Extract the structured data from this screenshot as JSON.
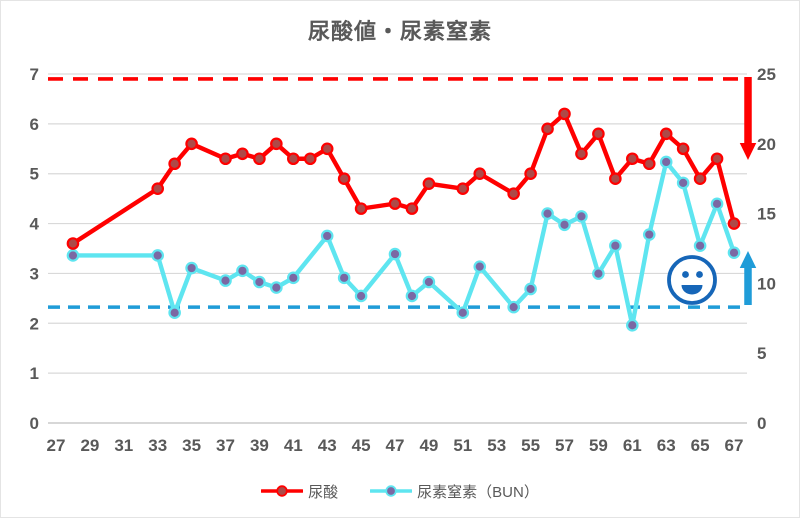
{
  "title": "尿酸値・尿素窒素",
  "chart_data": {
    "type": "line",
    "title": "尿酸値・尿素窒素",
    "grid": "horizontal",
    "legend_position": "bottom",
    "x_axis": {
      "label": "",
      "ticks": [
        27,
        29,
        31,
        33,
        35,
        37,
        39,
        41,
        43,
        45,
        47,
        49,
        51,
        53,
        55,
        57,
        59,
        61,
        63,
        65,
        67
      ]
    },
    "y_axis_left": {
      "label": "",
      "ticks": [
        0,
        1,
        2,
        3,
        4,
        5,
        6,
        7
      ],
      "range": [
        0,
        7
      ]
    },
    "y_axis_right": {
      "label": "",
      "ticks": [
        0,
        5,
        10,
        15,
        20,
        25
      ],
      "range": [
        0,
        25
      ]
    },
    "series": [
      {
        "name": "尿酸",
        "axis": "left",
        "line_color": "#ff0000",
        "marker_color": "#ad4a48",
        "x": [
          28,
          33,
          34,
          35,
          37,
          38,
          39,
          40,
          41,
          42,
          43,
          44,
          45,
          47,
          48,
          49,
          51,
          52,
          54,
          55,
          56,
          57,
          58,
          59,
          60,
          61,
          62,
          63,
          64,
          65,
          66,
          67
        ],
        "values": [
          3.6,
          4.7,
          5.2,
          5.6,
          5.3,
          5.4,
          5.3,
          5.6,
          5.3,
          5.3,
          5.5,
          4.9,
          4.3,
          4.4,
          4.3,
          4.8,
          4.7,
          5.0,
          4.6,
          5.0,
          5.9,
          6.2,
          5.4,
          5.8,
          4.9,
          5.3,
          5.2,
          5.8,
          5.5,
          4.9,
          5.3,
          4.0
        ]
      },
      {
        "name": "尿素窒素（BUN）",
        "axis": "right",
        "line_color": "#5ee5f0",
        "marker_color": "#7b68a3",
        "x": [
          28,
          33,
          34,
          35,
          37,
          38,
          39,
          40,
          41,
          43,
          44,
          45,
          47,
          48,
          49,
          51,
          52,
          54,
          55,
          56,
          57,
          58,
          59,
          60,
          61,
          62,
          63,
          64,
          65,
          66,
          67
        ],
        "values": [
          12.0,
          12.0,
          7.9,
          11.1,
          10.2,
          10.9,
          10.1,
          9.7,
          10.4,
          13.4,
          10.4,
          9.1,
          12.1,
          9.1,
          10.1,
          7.9,
          11.2,
          8.3,
          9.6,
          15.0,
          14.2,
          14.8,
          10.7,
          12.7,
          7.0,
          13.5,
          18.7,
          17.2,
          12.7,
          15.7,
          12.2
        ]
      }
    ],
    "reference_lines": [
      {
        "name": "uric-acid-upper-limit",
        "axis": "left",
        "value": 6.9,
        "color": "#ff0000",
        "style": "dashed"
      },
      {
        "name": "bun-lower-limit",
        "axis": "right",
        "value": 8.3,
        "color": "#1f9cd8",
        "style": "dashed"
      }
    ],
    "annotations": {
      "arrows": [
        {
          "name": "uric-acid-trend-arrow",
          "direction": "down",
          "color": "#ff0000"
        },
        {
          "name": "bun-trend-arrow",
          "direction": "up",
          "color": "#1f9cd8"
        }
      ],
      "smiley": {
        "name": "smiley-face-icon",
        "color": "#1666b8"
      }
    },
    "colors": {
      "text": "#595959",
      "gridline": "#d9d9d9",
      "axis_line": "#bfbfbf",
      "background": "#ffffff"
    }
  }
}
